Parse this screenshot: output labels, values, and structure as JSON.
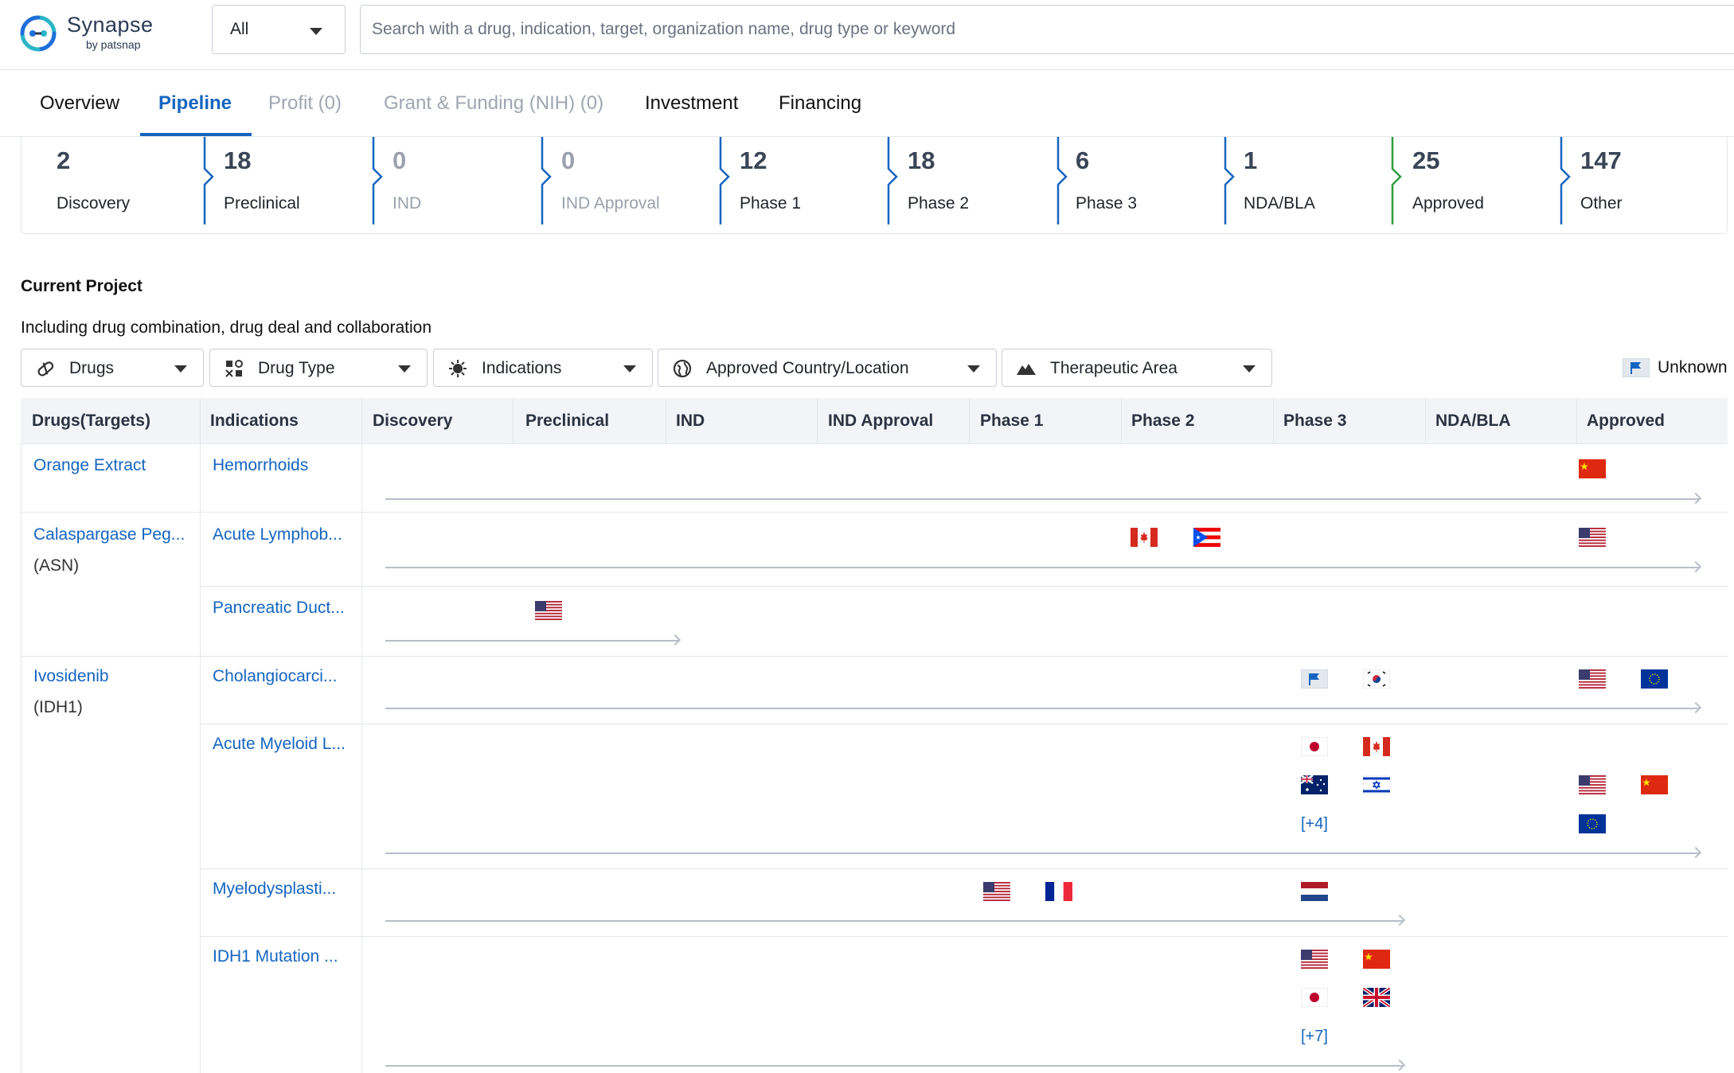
{
  "brand": {
    "name": "Synapse",
    "by": "by patsnap"
  },
  "search": {
    "scope": "All",
    "placeholder": "Search with a drug, indication, target, organization name, drug type or keyword"
  },
  "tabs": [
    {
      "label": "Overview",
      "state": "normal"
    },
    {
      "label": "Pipeline",
      "state": "active"
    },
    {
      "label": "Profit (0)",
      "state": "disabled"
    },
    {
      "label": "Grant & Funding (NIH) (0)",
      "state": "disabled"
    },
    {
      "label": "Investment",
      "state": "normal"
    },
    {
      "label": "Financing",
      "state": "normal"
    }
  ],
  "phase_stats": [
    {
      "count": "2",
      "label": "Discovery"
    },
    {
      "count": "18",
      "label": "Preclinical"
    },
    {
      "count": "0",
      "label": "IND"
    },
    {
      "count": "0",
      "label": "IND Approval"
    },
    {
      "count": "12",
      "label": "Phase 1"
    },
    {
      "count": "18",
      "label": "Phase 2"
    },
    {
      "count": "6",
      "label": "Phase 3"
    },
    {
      "count": "1",
      "label": "NDA/BLA"
    },
    {
      "count": "25",
      "label": "Approved"
    },
    {
      "count": "147",
      "label": "Other"
    }
  ],
  "section": {
    "title": "Current Project",
    "subtitle": "Including drug combination, drug deal and collaboration"
  },
  "filters": [
    {
      "label": "Drugs",
      "icon": "pill-icon"
    },
    {
      "label": "Drug Type",
      "icon": "drug-type-icon"
    },
    {
      "label": "Indications",
      "icon": "virus-icon"
    },
    {
      "label": "Approved Country/Location",
      "icon": "globe-icon"
    },
    {
      "label": "Therapeutic Area",
      "icon": "mountain-icon"
    }
  ],
  "legend": {
    "unknown_label": "Unknown",
    "icon": "flag-icon"
  },
  "table": {
    "headers": [
      "Drugs(Targets)",
      "Indications",
      "Discovery",
      "Preclinical",
      "IND",
      "IND Approval",
      "Phase 1",
      "Phase 2",
      "Phase 3",
      "NDA/BLA",
      "Approved"
    ],
    "drugs": [
      {
        "name": "Orange Extract",
        "target": ""
      },
      {
        "name": "Calaspargase Peg...",
        "target": "(ASN)"
      },
      {
        "name": "Ivosidenib",
        "target": "(IDH1)"
      }
    ],
    "rows": [
      {
        "indication": "Hemorrhoids",
        "max_phase": "Approved"
      },
      {
        "indication": "Acute Lymphob...",
        "max_phase": "Approved"
      },
      {
        "indication": "Pancreatic Duct...",
        "max_phase": "Preclinical"
      },
      {
        "indication": "Cholangiocarci...",
        "max_phase": "Approved"
      },
      {
        "indication": "Acute Myeloid L...",
        "max_phase": "Approved",
        "phase3_more": "[+4]"
      },
      {
        "indication": "Myelodysplasti...",
        "max_phase": "Phase 3"
      },
      {
        "indication": "IDH1 Mutation ...",
        "max_phase": "Phase 3",
        "phase3_more": "[+7]"
      }
    ]
  }
}
